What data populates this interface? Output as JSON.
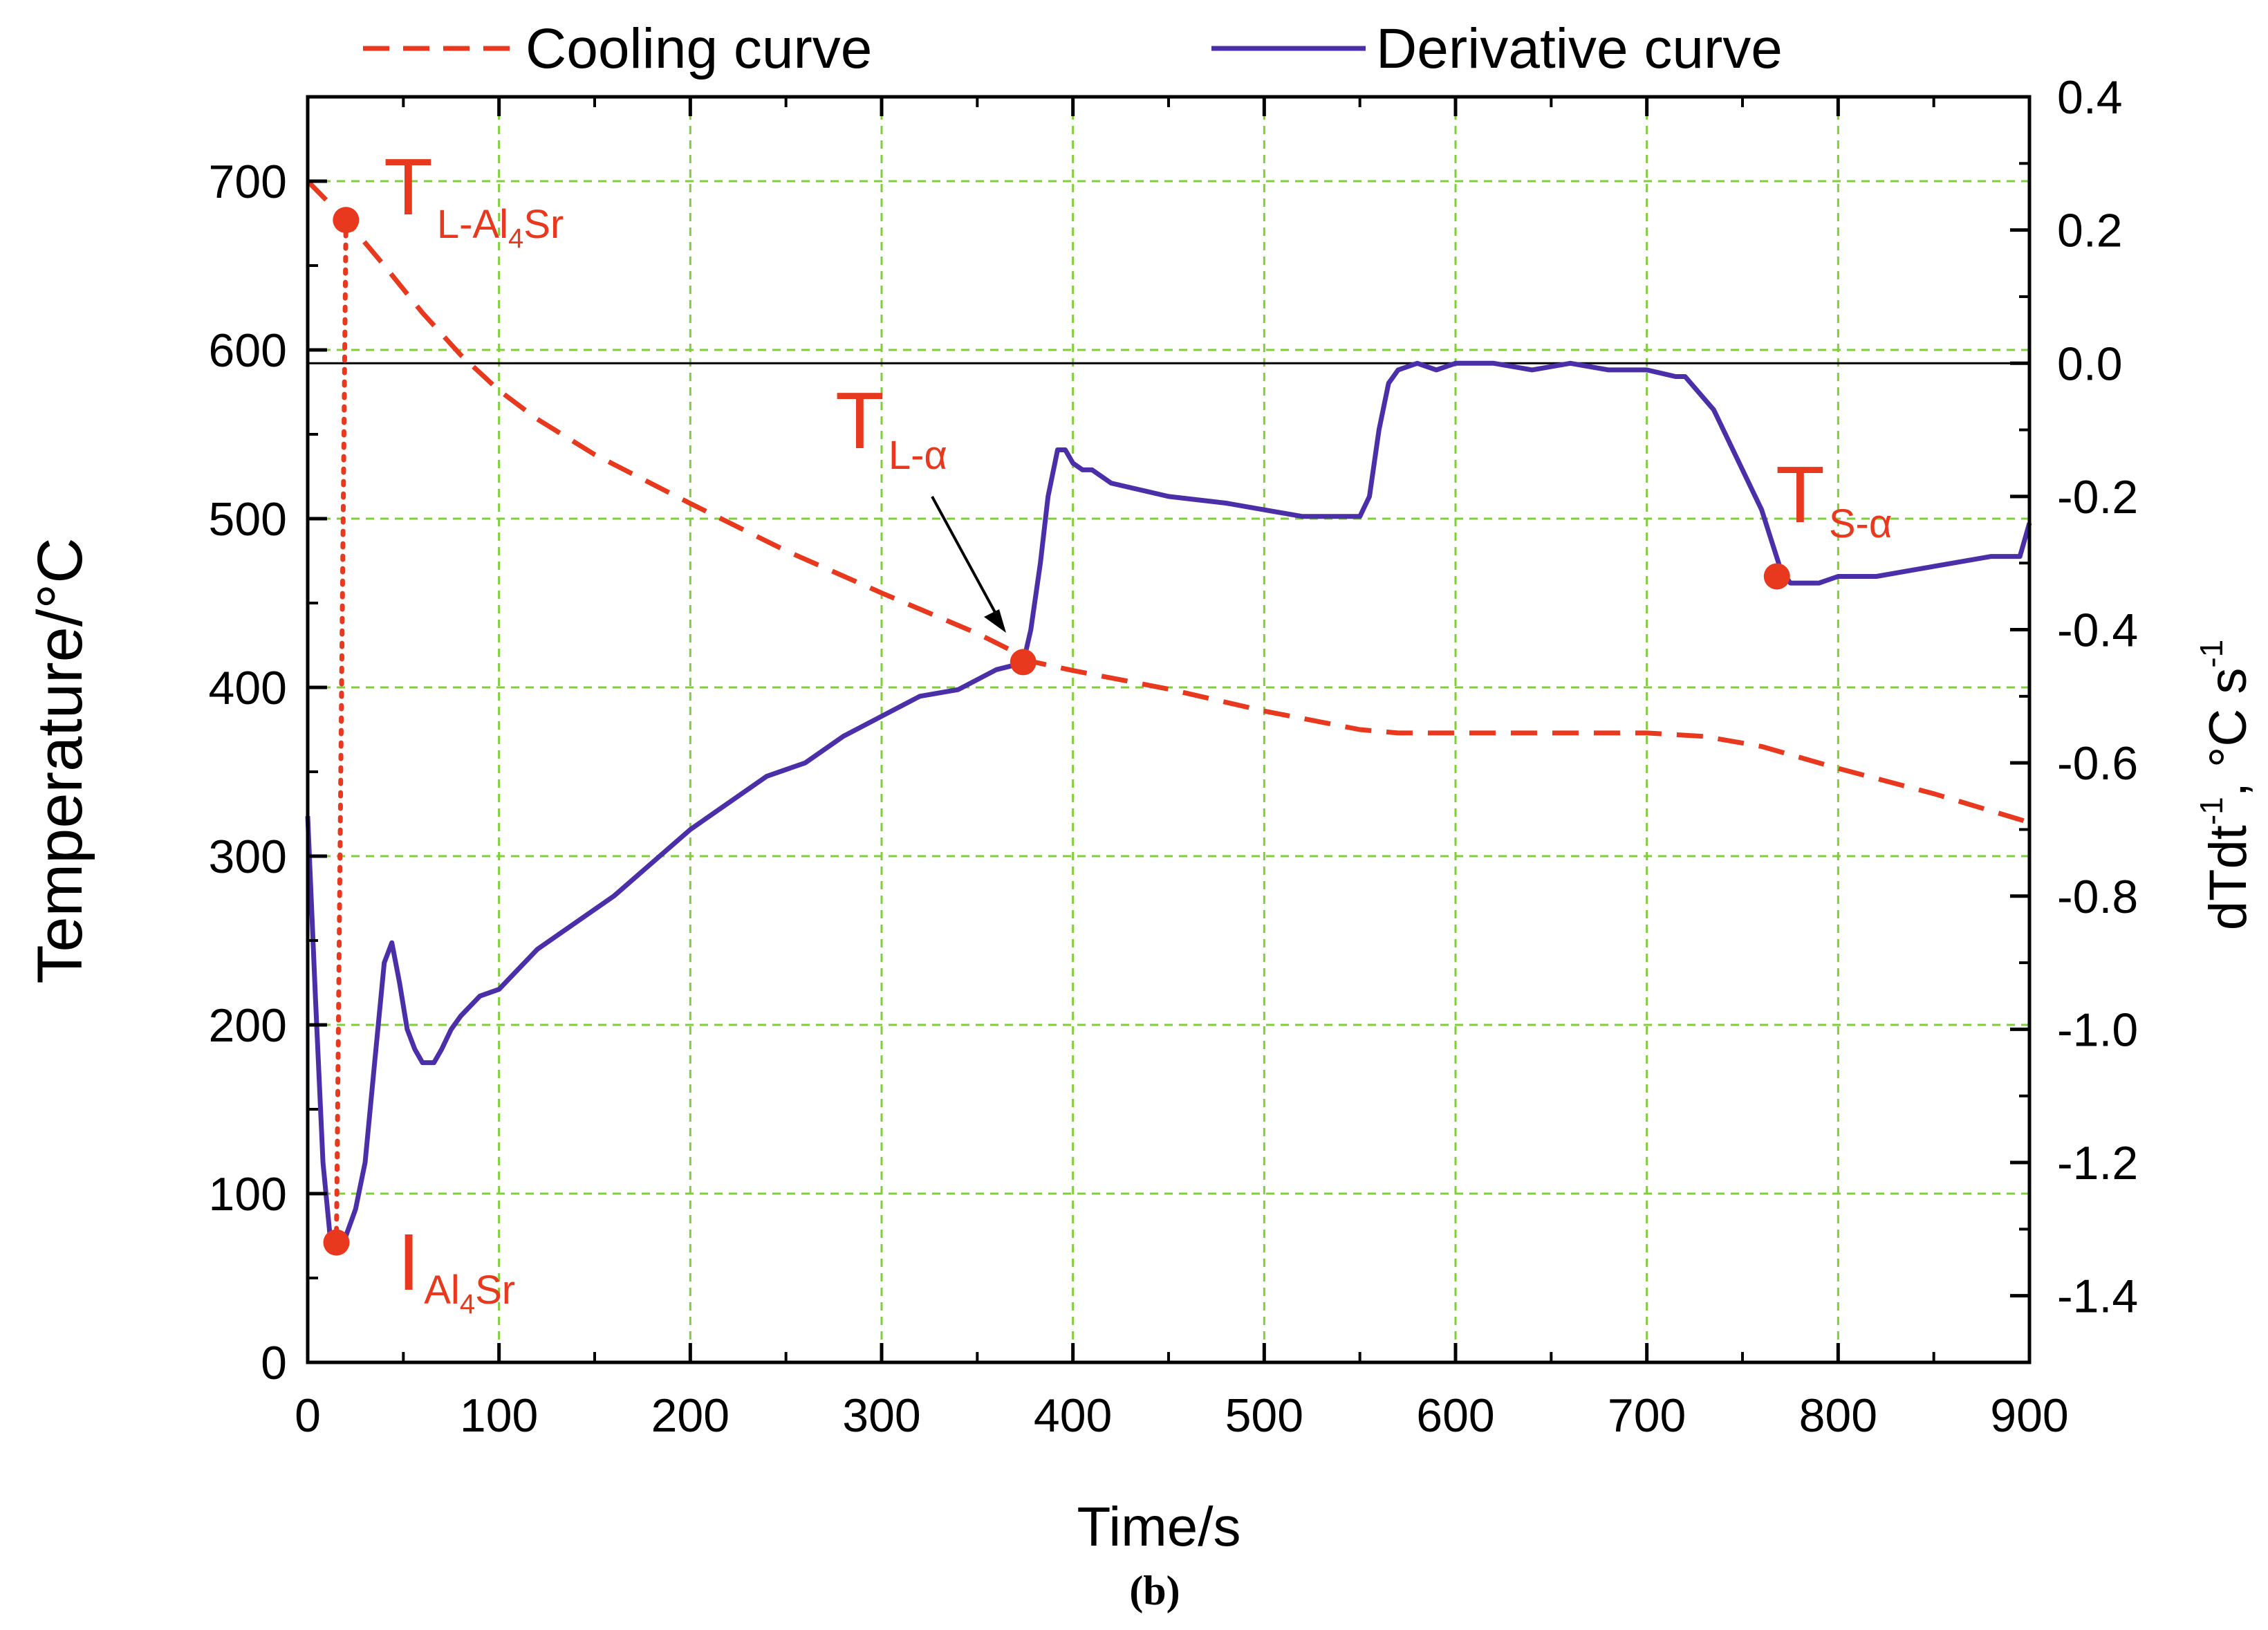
{
  "colors": {
    "cooling": "#e8381d",
    "derivative": "#4a2fa8",
    "grid": "#7fcf3a",
    "axis": "#000000",
    "zero_line": "#000000"
  },
  "chart_data": {
    "type": "line",
    "xlabel": "Time/s",
    "ylabel_left": "Temperature/°C",
    "ylabel_right": {
      "main": "dTdt",
      "sup1": "-1",
      "unit": ", °C s",
      "sup2": "-1"
    },
    "xlim": [
      0,
      900
    ],
    "ylim_left": [
      0,
      750
    ],
    "ylim_right": [
      -1.5,
      0.4
    ],
    "x_ticks": [
      "0",
      "100",
      "200",
      "300",
      "400",
      "500",
      "600",
      "700",
      "800",
      "900"
    ],
    "y_left_ticks": [
      "0",
      "100",
      "200",
      "300",
      "400",
      "500",
      "600",
      "700"
    ],
    "y_right_ticks": [
      "0.4",
      "0.2",
      "0.0",
      "-0.2",
      "-0.4",
      "-0.6",
      "-0.8",
      "-1.0",
      "-1.2",
      "-1.4"
    ],
    "grid": true,
    "legend": {
      "position": "top",
      "entries": [
        {
          "label": "Cooling curve",
          "style": "dashed"
        },
        {
          "label": "Derivative curve",
          "style": "solid"
        }
      ]
    },
    "series": [
      {
        "name": "Cooling curve",
        "axis": "left",
        "x": [
          0,
          20,
          40,
          60,
          80,
          100,
          120,
          150,
          200,
          250,
          300,
          350,
          380,
          400,
          450,
          500,
          550,
          570,
          600,
          650,
          700,
          730,
          760,
          800,
          850,
          900
        ],
        "y": [
          700,
          677,
          650,
          622,
          597,
          576,
          559,
          538,
          509,
          481,
          456,
          432,
          415,
          410,
          399,
          386,
          375,
          373,
          373,
          373,
          373,
          371,
          365,
          352,
          337,
          320
        ]
      },
      {
        "name": "Derivative curve",
        "axis": "right",
        "x": [
          0,
          4,
          8,
          12,
          15,
          20,
          25,
          30,
          35,
          40,
          44,
          48,
          52,
          56,
          60,
          66,
          70,
          75,
          80,
          90,
          100,
          110,
          120,
          140,
          160,
          180,
          200,
          220,
          240,
          260,
          280,
          300,
          320,
          340,
          360,
          374,
          378,
          383,
          387,
          392,
          396,
          400,
          405,
          410,
          420,
          450,
          480,
          500,
          520,
          540,
          550,
          555,
          560,
          565,
          570,
          580,
          590,
          600,
          620,
          640,
          660,
          680,
          700,
          715,
          720,
          735,
          750,
          760,
          770,
          775,
          790,
          800,
          820,
          840,
          860,
          880,
          895,
          900
        ],
        "y": [
          -0.68,
          -0.95,
          -1.2,
          -1.32,
          -1.32,
          -1.31,
          -1.27,
          -1.2,
          -1.05,
          -0.9,
          -0.87,
          -0.93,
          -1.0,
          -1.03,
          -1.05,
          -1.05,
          -1.03,
          -1.0,
          -0.98,
          -0.95,
          -0.94,
          -0.91,
          -0.88,
          -0.84,
          -0.8,
          -0.75,
          -0.7,
          -0.66,
          -0.62,
          -0.6,
          -0.56,
          -0.53,
          -0.5,
          -0.49,
          -0.46,
          -0.45,
          -0.4,
          -0.3,
          -0.2,
          -0.13,
          -0.13,
          -0.15,
          -0.16,
          -0.16,
          -0.18,
          -0.2,
          -0.21,
          -0.22,
          -0.23,
          -0.23,
          -0.23,
          -0.2,
          -0.1,
          -0.03,
          -0.01,
          0.0,
          -0.01,
          0.0,
          0.0,
          -0.01,
          0.0,
          -0.01,
          -0.01,
          -0.02,
          -0.02,
          -0.07,
          -0.16,
          -0.22,
          -0.31,
          -0.33,
          -0.33,
          -0.32,
          -0.32,
          -0.31,
          -0.3,
          -0.29,
          -0.29,
          -0.24
        ]
      }
    ],
    "markers": [
      {
        "name": "T_L-Al4Sr",
        "axis": "left",
        "x": 20,
        "y": 677
      },
      {
        "name": "I_Al4Sr",
        "axis": "right",
        "x": 15,
        "y": -1.32
      },
      {
        "name": "T_L-alpha",
        "axis": "left",
        "x": 374,
        "y": 415
      },
      {
        "name": "T_S-alpha",
        "axis": "right",
        "x": 768,
        "y": -0.32
      }
    ],
    "annotations": [
      {
        "main": "T",
        "sub": "L-Al",
        "sub_small": "4",
        "sub_tail": "Sr"
      },
      {
        "main": "I",
        "sub": "Al",
        "sub_small": "4",
        "sub_tail": "Sr"
      },
      {
        "main": "T",
        "sub": "L-α"
      },
      {
        "main": "T",
        "sub": "S-α"
      }
    ],
    "caption": "(b)"
  }
}
